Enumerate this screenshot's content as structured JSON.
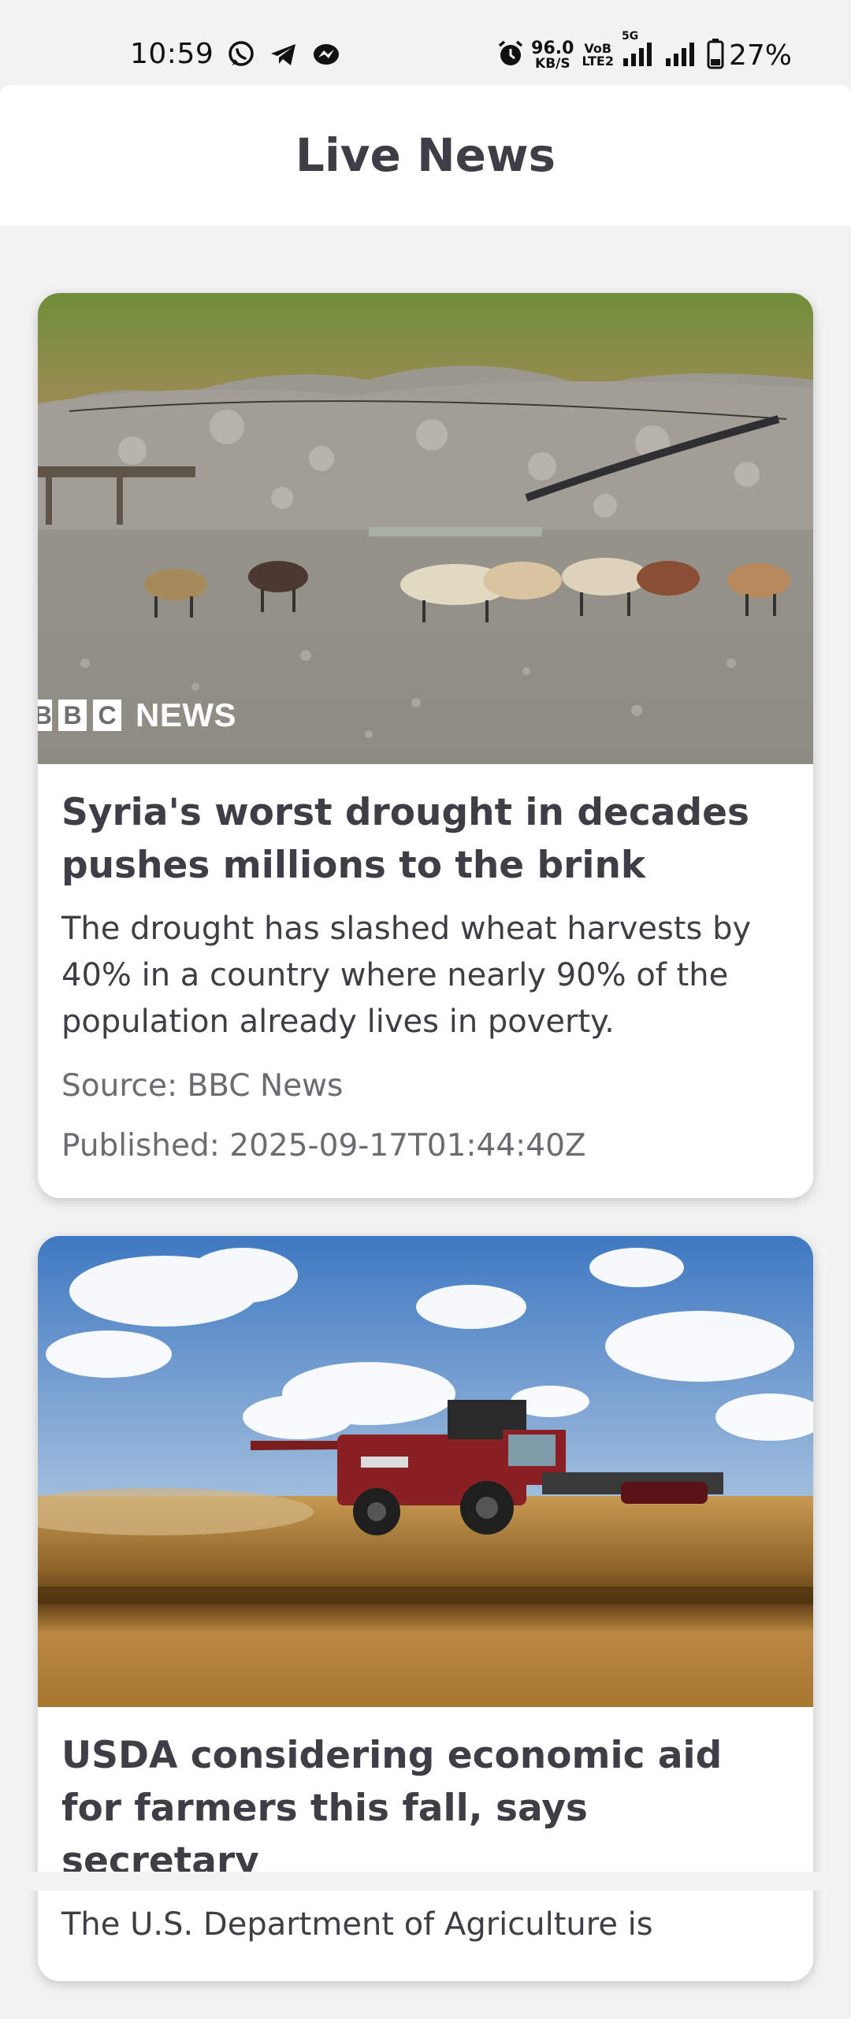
{
  "status_bar": {
    "time": "10:59",
    "net_speed_value": "96.0",
    "net_speed_unit": "KB/S",
    "volte_top": "VoB",
    "volte_bottom": "LTE2",
    "network_type": "5G",
    "battery": "27%",
    "icons": [
      "whatsapp-icon",
      "telegram-icon",
      "messenger-icon",
      "alarm-icon",
      "signal-icon",
      "signal-icon",
      "battery-icon"
    ]
  },
  "app_bar": {
    "title": "Live News"
  },
  "articles": [
    {
      "image_logo_text": [
        "B",
        "B",
        "C"
      ],
      "image_logo_suffix": "NEWS",
      "title": "Syria's worst drought in decades pushes millions to the brink",
      "description": "The drought has slashed wheat harvests by 40% in a country where nearly 90% of the population already lives in poverty.",
      "source": "Source: BBC News",
      "published": "Published: 2025-09-17T01:44:40Z"
    },
    {
      "title": "USDA considering economic aid for farmers this fall, says secretary",
      "description": "The U.S. Department of Agriculture is"
    }
  ]
}
